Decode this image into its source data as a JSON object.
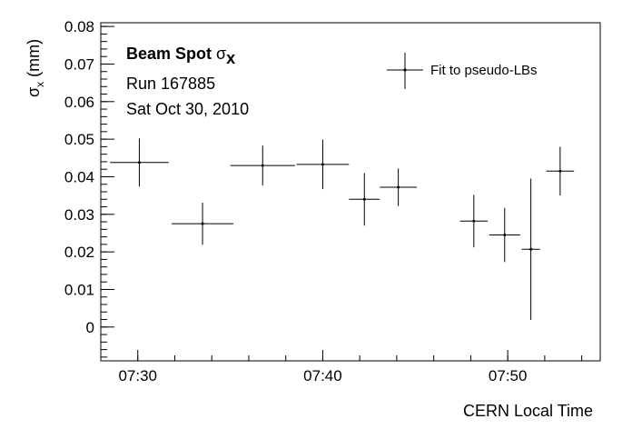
{
  "chart_data": {
    "type": "scatter",
    "title": "",
    "xlabel": "CERN Local Time",
    "ylabel": {
      "symbol": "σ",
      "subscript": "x",
      "unit": "(mm)"
    },
    "xlim": [
      "07:28",
      "07:55"
    ],
    "ylim": [
      -0.009,
      0.081
    ],
    "x_ticks": [
      "07:30",
      "07:40",
      "07:50"
    ],
    "y_ticks": [
      "0",
      "0.01",
      "0.02",
      "0.03",
      "0.04",
      "0.05",
      "0.06",
      "0.07",
      "0.08"
    ],
    "grid": false,
    "legend_position": "top-right",
    "info": {
      "title_bold": "Beam Spot",
      "title_symbol": "σ",
      "title_subscript": "x",
      "run": "Run 167885",
      "date": "Sat Oct 30, 2010"
    },
    "series": [
      {
        "name": "Fit to pseudo-LBs",
        "points": [
          {
            "x": "07:30:05",
            "x_from": "07:28:30",
            "x_to": "07:31:40",
            "y": 0.0438,
            "y_err": 0.0064
          },
          {
            "x": "07:33:30",
            "x_from": "07:31:50",
            "x_to": "07:35:10",
            "y": 0.0275,
            "y_err": 0.0056
          },
          {
            "x": "07:36:45",
            "x_from": "07:35:00",
            "x_to": "07:38:30",
            "y": 0.043,
            "y_err": 0.0053
          },
          {
            "x": "07:40:00",
            "x_from": "07:38:35",
            "x_to": "07:41:25",
            "y": 0.0433,
            "y_err": 0.0066
          },
          {
            "x": "07:42:15",
            "x_from": "07:41:25",
            "x_to": "07:43:05",
            "y": 0.034,
            "y_err": 0.007
          },
          {
            "x": "07:44:05",
            "x_from": "07:43:05",
            "x_to": "07:45:05",
            "y": 0.0372,
            "y_err": 0.005
          },
          {
            "x": "07:48:10",
            "x_from": "07:47:25",
            "x_to": "07:48:55",
            "y": 0.0282,
            "y_err": 0.007
          },
          {
            "x": "07:49:50",
            "x_from": "07:49:00",
            "x_to": "07:50:40",
            "y": 0.0245,
            "y_err": 0.0072
          },
          {
            "x": "07:51:15",
            "x_from": "07:50:45",
            "x_to": "07:51:45",
            "y": 0.0207,
            "y_err": 0.0188
          },
          {
            "x": "07:52:50",
            "x_from": "07:52:05",
            "x_to": "07:53:35",
            "y": 0.0415,
            "y_err": 0.0065
          }
        ]
      }
    ]
  }
}
